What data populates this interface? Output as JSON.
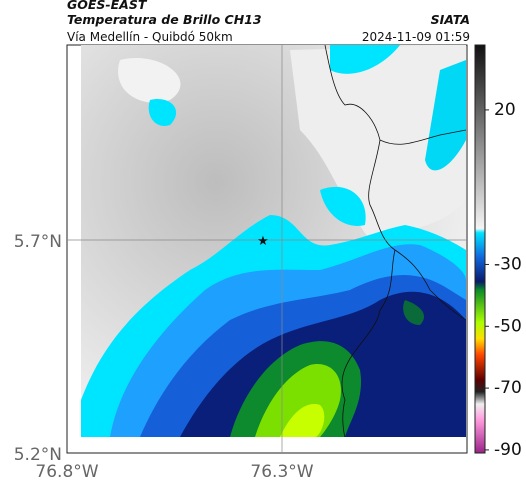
{
  "header": {
    "satellite": "GOES-EAST",
    "title": "Temperatura de Brillo CH13",
    "subtitle": "Vía Medellín - Quibdó 50km",
    "source": "SIATA",
    "datetime": "2024-11-09 01:59"
  },
  "map": {
    "lat_labels": [
      "5.7°N",
      "5.2°N"
    ],
    "lon_labels": [
      "76.8°W",
      "76.3°W"
    ]
  },
  "colorbar": {
    "limits": [
      41,
      -91
    ],
    "ticks": [
      20,
      -30,
      -50,
      -70,
      -90
    ]
  }
}
